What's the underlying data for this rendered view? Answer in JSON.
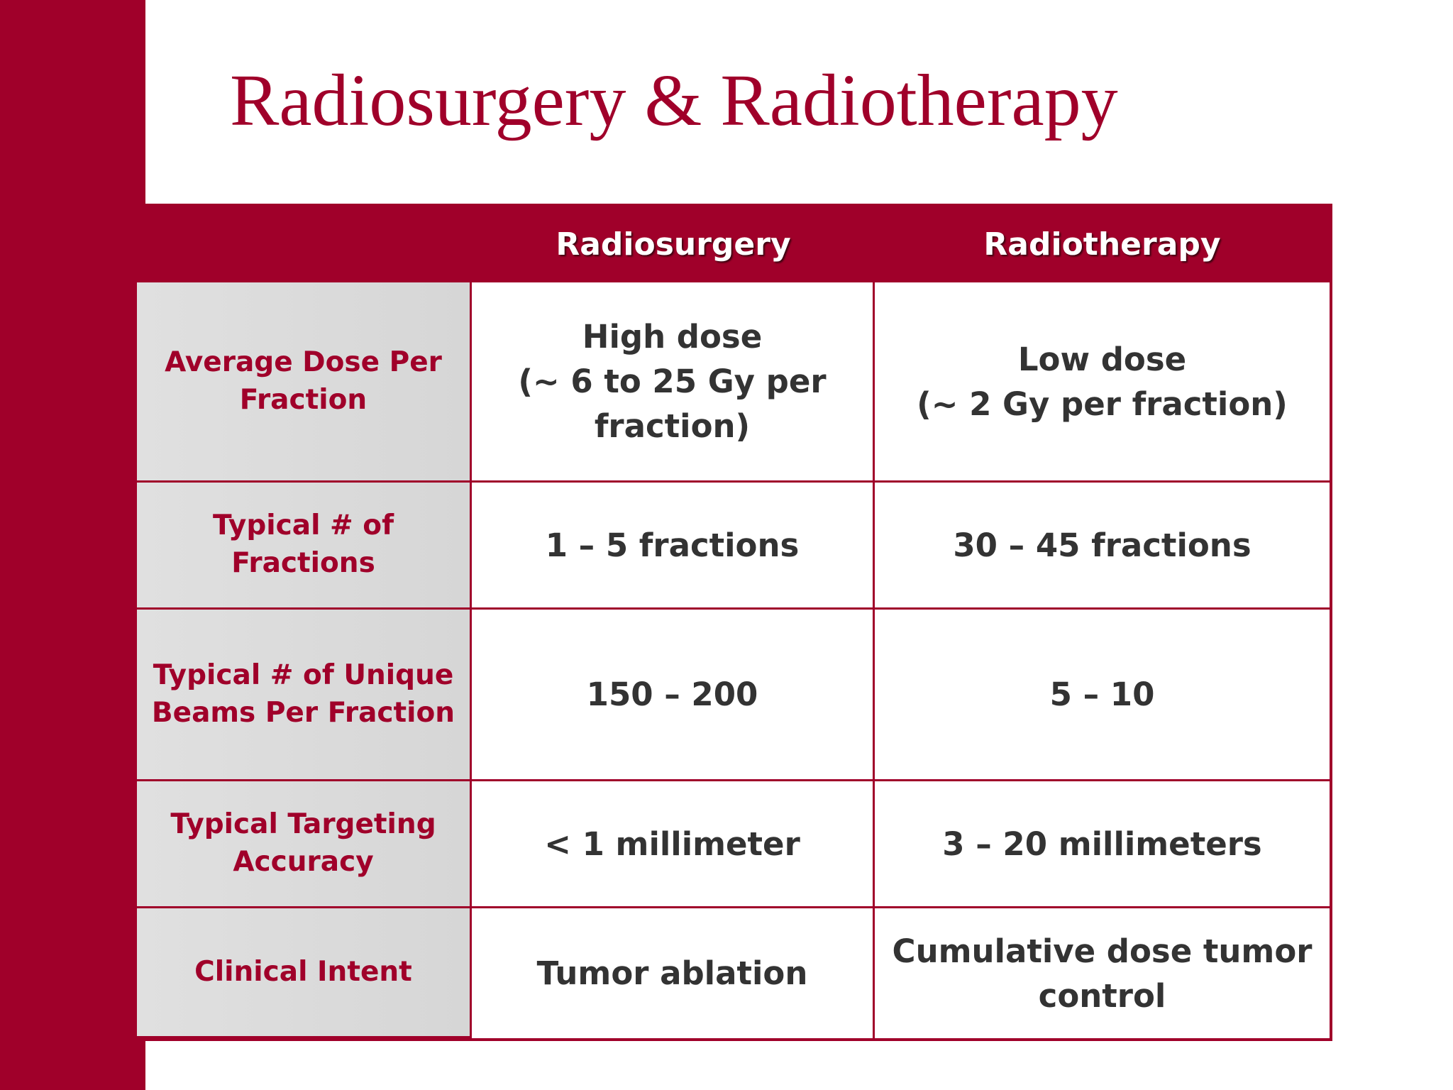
{
  "title": "Radiosurgery & Radiotherapy",
  "table": {
    "columns": [
      "Radiosurgery",
      "Radiotherapy"
    ],
    "rows": [
      {
        "label": "Average Dose Per Fraction",
        "cells": [
          "High dose\n(~ 6 to 25 Gy per fraction)",
          "Low dose\n(~ 2 Gy per fraction)"
        ]
      },
      {
        "label": "Typical # of Fractions",
        "cells": [
          "1 – 5 fractions",
          "30 – 45 fractions"
        ]
      },
      {
        "label": "Typical # of Unique Beams Per Fraction",
        "cells": [
          "150 – 200",
          "5 – 10"
        ]
      },
      {
        "label": "Typical Targeting Accuracy",
        "cells": [
          "< 1 millimeter",
          "3 – 20 millimeters"
        ]
      },
      {
        "label": "Clinical Intent",
        "cells": [
          "Tumor ablation",
          "Cumulative dose tumor control"
        ]
      }
    ]
  }
}
